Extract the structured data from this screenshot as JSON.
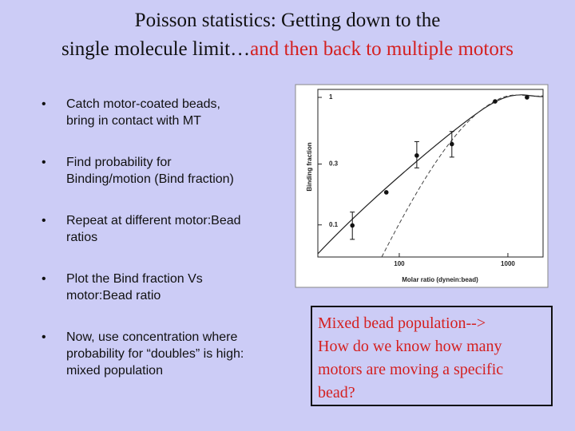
{
  "title": {
    "line1": "Poisson statistics: Getting down to the",
    "line2": "single molecule limit…",
    "line2_red": "and then back to multiple motors"
  },
  "bullets": [
    [
      "Catch motor-coated beads,",
      "bring in contact with  MT"
    ],
    [
      "Find probability for",
      "Binding/motion (Bind fraction)"
    ],
    [
      "Repeat at different motor:Bead",
      "ratios"
    ],
    [
      "Plot the Bind fraction Vs",
      "motor:Bead ratio"
    ],
    [
      "Now, use concentration where",
      "probability for “doubles” is high:",
      "mixed population"
    ]
  ],
  "bullet_symbol": "•",
  "chart_data": {
    "type": "scatter",
    "x_label": "Molar ratio (dynein:bead)",
    "y_label": "Binding fraction",
    "x": [
      37,
      76,
      145,
      305,
      763,
      1500
    ],
    "values": [
      0.099,
      0.18,
      0.35,
      0.43,
      0.93,
      1.0
    ],
    "y_low": [
      0.077,
      null,
      0.28,
      0.34,
      null,
      null
    ],
    "y_high": [
      0.126,
      null,
      0.45,
      0.54,
      null,
      null
    ],
    "xlim": [
      17.8,
      2108
    ],
    "ylim": [
      0.056,
      1.155
    ],
    "xticks": [
      100,
      1000
    ],
    "yticks": [
      1,
      0.3,
      0.1
    ],
    "xlog": true,
    "ylog": true,
    "color": "#111111"
  },
  "callout": [
    "Mixed bead population-->",
    "How do we know how many",
    "motors are moving a specific",
    "bead?"
  ]
}
